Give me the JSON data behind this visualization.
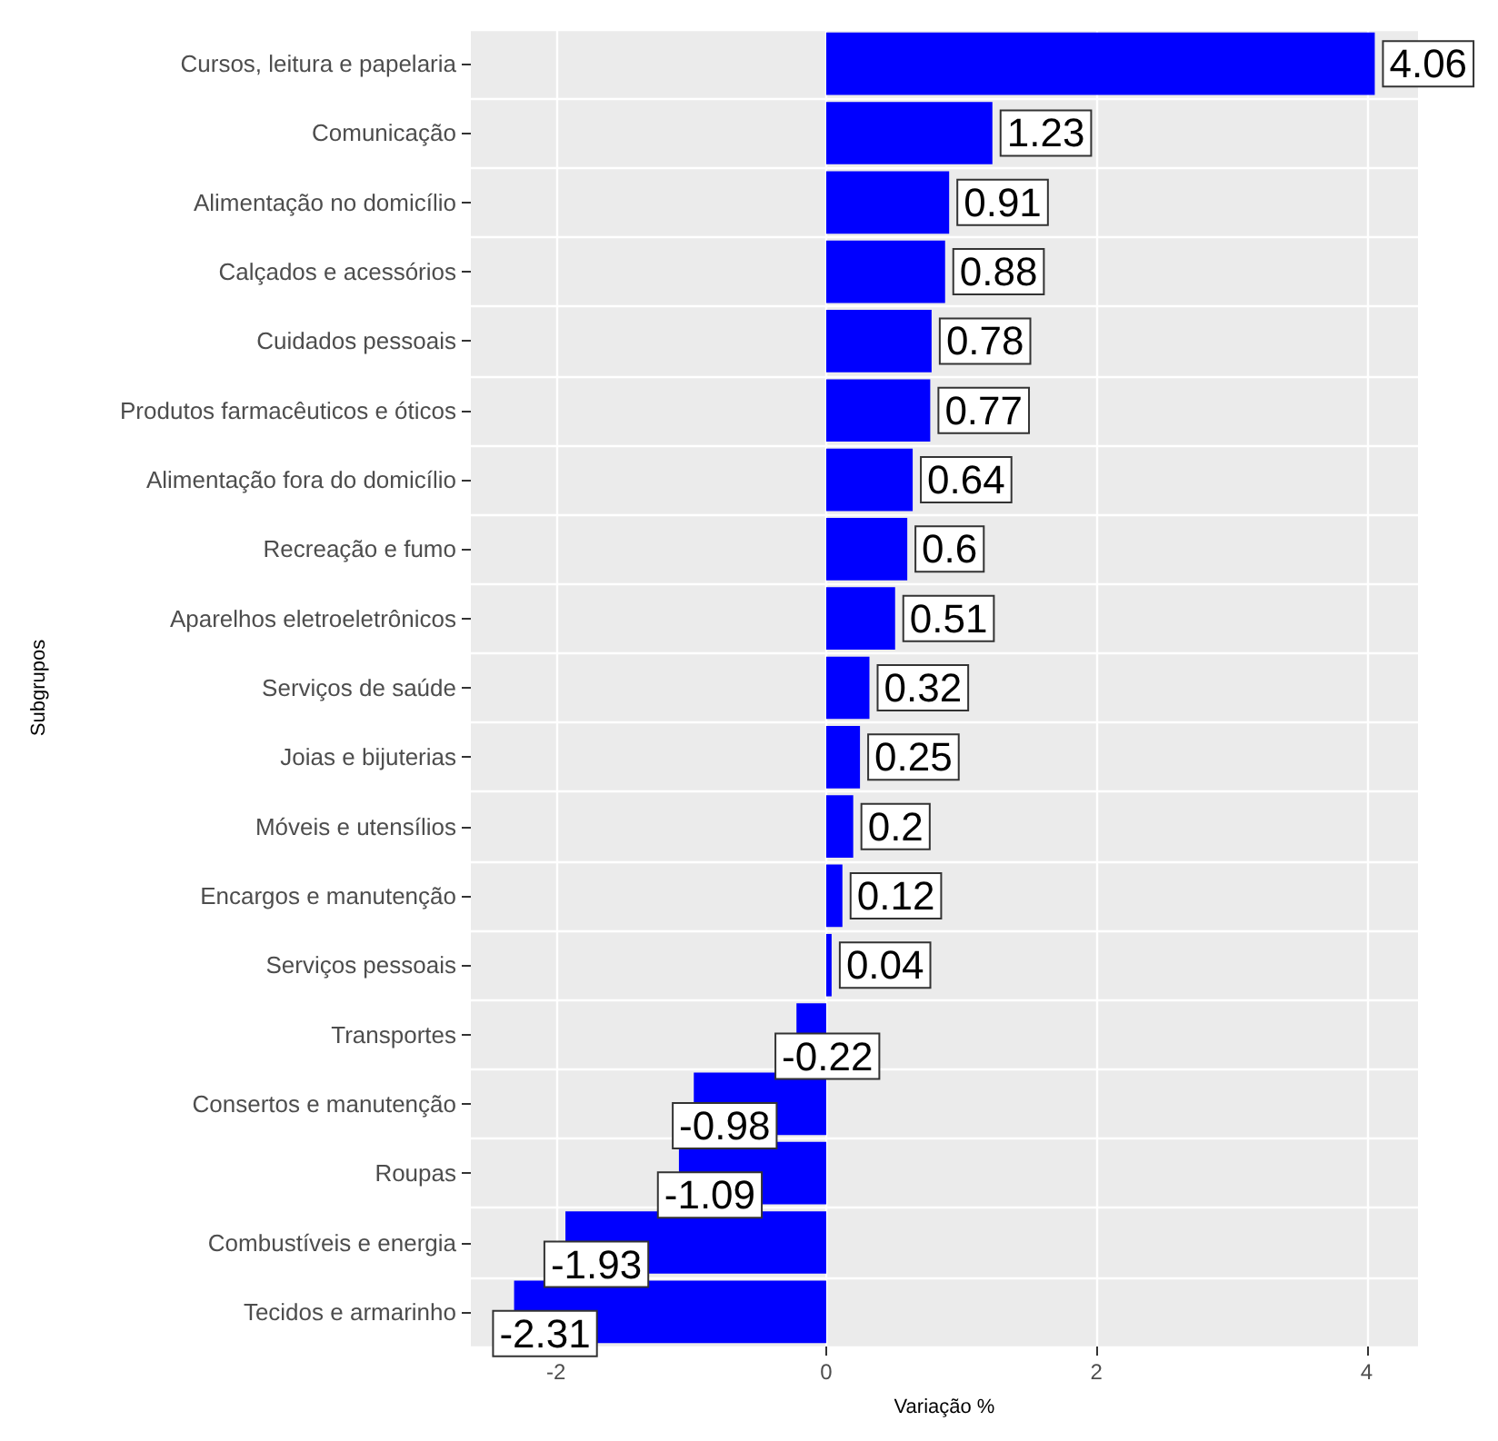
{
  "chart_data": {
    "type": "bar",
    "orientation": "horizontal",
    "xlabel": "Variação %",
    "ylabel": "Subgrupos",
    "categories": [
      "Cursos, leitura e papelaria",
      "Comunicação",
      "Alimentação no domicílio",
      "Calçados e acessórios",
      "Cuidados pessoais",
      "Produtos farmacêuticos e óticos",
      "Alimentação fora do domicílio",
      "Recreação e fumo",
      "Aparelhos eletroeletrônicos",
      "Serviços de saúde",
      "Joias e bijuterias",
      "Móveis e utensílios",
      "Encargos e manutenção",
      "Serviços pessoais",
      "Transportes",
      "Consertos e manutenção",
      "Roupas",
      "Combustíveis e energia",
      "Tecidos e armarinho"
    ],
    "values": [
      4.06,
      1.23,
      0.91,
      0.88,
      0.78,
      0.77,
      0.64,
      0.6,
      0.51,
      0.32,
      0.25,
      0.2,
      0.12,
      0.04,
      -0.22,
      -0.98,
      -1.09,
      -1.93,
      -2.31
    ],
    "color": "#0000ff",
    "xlim": [
      -2.63,
      4.38
    ],
    "xticks": [
      -2,
      0,
      2,
      4
    ],
    "grid": true,
    "data_labels": true
  }
}
